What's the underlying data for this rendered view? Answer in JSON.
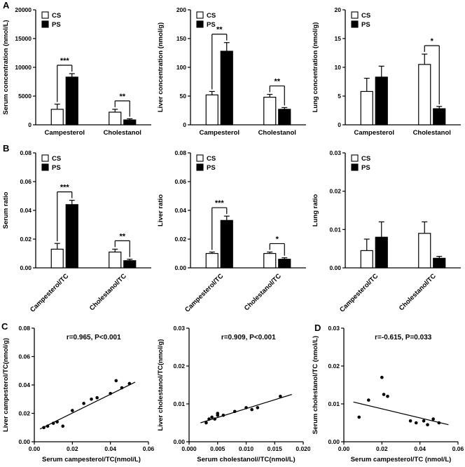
{
  "panels": {
    "A": "A",
    "B": "B",
    "C": "C",
    "D": "D"
  },
  "legend": {
    "cs": "CS",
    "ps": "PS"
  },
  "colors": {
    "cs_fill": "#ffffff",
    "ps_fill": "#000000",
    "stroke": "#000000"
  },
  "chart_data": [
    {
      "id": "serum-concentration",
      "panel": "A",
      "type": "bar",
      "ylabel": "Serum concentration (nmol/L)",
      "ylim": [
        0,
        20000
      ],
      "yticks": [
        0,
        5000,
        10000,
        15000,
        20000
      ],
      "ytick_decimals": 0,
      "categories": [
        "Campesterol",
        "Cholestanol"
      ],
      "rotate_xticks": false,
      "series": [
        {
          "name": "CS",
          "values": [
            2700,
            2200
          ],
          "errors": [
            900,
            500
          ]
        },
        {
          "name": "PS",
          "values": [
            8300,
            850
          ],
          "errors": [
            600,
            200
          ]
        }
      ],
      "significance": [
        {
          "category": 0,
          "label": "***"
        },
        {
          "category": 1,
          "label": "**"
        }
      ]
    },
    {
      "id": "liver-concentration",
      "panel": "A",
      "type": "bar",
      "ylabel": "Liver concentration (nmol/g)",
      "ylim": [
        0,
        200
      ],
      "yticks": [
        0,
        50,
        100,
        150,
        200
      ],
      "ytick_decimals": 0,
      "categories": [
        "Campesterol",
        "Cholestanol"
      ],
      "rotate_xticks": false,
      "series": [
        {
          "name": "CS",
          "values": [
            52,
            48
          ],
          "errors": [
            6,
            5
          ]
        },
        {
          "name": "PS",
          "values": [
            128,
            27
          ],
          "errors": [
            15,
            3
          ]
        }
      ],
      "significance": [
        {
          "category": 0,
          "label": "**"
        },
        {
          "category": 1,
          "label": "**"
        }
      ]
    },
    {
      "id": "lung-concentration",
      "panel": "A",
      "type": "bar",
      "ylabel": "Lung concentration (nmol/g)",
      "ylim": [
        0,
        20
      ],
      "yticks": [
        0,
        5,
        10,
        15,
        20
      ],
      "ytick_decimals": 0,
      "categories": [
        "Campesterol",
        "Cholestanol"
      ],
      "rotate_xticks": false,
      "series": [
        {
          "name": "CS",
          "values": [
            5.8,
            10.5
          ],
          "errors": [
            2.3,
            1.8
          ]
        },
        {
          "name": "PS",
          "values": [
            8.3,
            2.8
          ],
          "errors": [
            1.9,
            0.4
          ]
        }
      ],
      "significance": [
        {
          "category": 1,
          "label": "*"
        }
      ]
    },
    {
      "id": "serum-ratio",
      "panel": "B",
      "type": "bar",
      "ylabel": "Serum ratio",
      "ylim": [
        0,
        0.08
      ],
      "yticks": [
        0,
        0.02,
        0.04,
        0.06,
        0.08
      ],
      "ytick_decimals": 2,
      "categories": [
        "Campesterol/TC",
        "Cholestanol/TC"
      ],
      "rotate_xticks": true,
      "series": [
        {
          "name": "CS",
          "values": [
            0.013,
            0.011
          ],
          "errors": [
            0.004,
            0.002
          ]
        },
        {
          "name": "PS",
          "values": [
            0.044,
            0.005
          ],
          "errors": [
            0.003,
            0.001
          ]
        }
      ],
      "significance": [
        {
          "category": 0,
          "label": "***"
        },
        {
          "category": 1,
          "label": "**"
        }
      ]
    },
    {
      "id": "liver-ratio",
      "panel": "B",
      "type": "bar",
      "ylabel": "Liver ratio",
      "ylim": [
        0,
        0.08
      ],
      "yticks": [
        0,
        0.02,
        0.04,
        0.06,
        0.08
      ],
      "ytick_decimals": 2,
      "categories": [
        "Campesterol/TC",
        "Cholestanol/TC"
      ],
      "rotate_xticks": true,
      "series": [
        {
          "name": "CS",
          "values": [
            0.01,
            0.01
          ],
          "errors": [
            0.001,
            0.001
          ]
        },
        {
          "name": "PS",
          "values": [
            0.033,
            0.006
          ],
          "errors": [
            0.003,
            0.001
          ]
        }
      ],
      "significance": [
        {
          "category": 0,
          "label": "***"
        },
        {
          "category": 1,
          "label": "*"
        }
      ]
    },
    {
      "id": "lung-ratio",
      "panel": "B",
      "type": "bar",
      "ylabel": "Lung ratio",
      "ylim": [
        0,
        0.03
      ],
      "yticks": [
        0,
        0.01,
        0.02,
        0.03
      ],
      "ytick_decimals": 2,
      "categories": [
        "Campesterol/TC",
        "Cholestanol/TC"
      ],
      "rotate_xticks": true,
      "series": [
        {
          "name": "CS",
          "values": [
            0.0045,
            0.009
          ],
          "errors": [
            0.003,
            0.003
          ]
        },
        {
          "name": "PS",
          "values": [
            0.008,
            0.0025
          ],
          "errors": [
            0.004,
            0.0005
          ]
        }
      ],
      "significance": []
    },
    {
      "id": "liver-campesterol-correlation",
      "panel": "C",
      "type": "scatter",
      "xlabel": "Serum campesterol/TC(nmol/L)",
      "ylabel": "Liver campesterol/TC(nmol/g)",
      "xlim": [
        0,
        0.06
      ],
      "xticks": [
        0,
        0.02,
        0.04,
        0.06
      ],
      "xtick_decimals": 2,
      "ylim": [
        0,
        0.08
      ],
      "yticks": [
        0,
        0.02,
        0.04,
        0.06,
        0.08
      ],
      "ytick_decimals": 2,
      "annotation": "r=0.965, P<0.001",
      "points": [
        [
          0.005,
          0.01
        ],
        [
          0.007,
          0.011
        ],
        [
          0.01,
          0.013
        ],
        [
          0.012,
          0.014
        ],
        [
          0.015,
          0.011
        ],
        [
          0.02,
          0.022
        ],
        [
          0.026,
          0.027
        ],
        [
          0.03,
          0.03
        ],
        [
          0.033,
          0.031
        ],
        [
          0.04,
          0.034
        ],
        [
          0.043,
          0.043
        ],
        [
          0.046,
          0.038
        ],
        [
          0.05,
          0.041
        ]
      ],
      "fit_line": [
        [
          0.003,
          0.009
        ],
        [
          0.053,
          0.042
        ]
      ]
    },
    {
      "id": "liver-cholestanol-correlation",
      "panel": "C",
      "type": "scatter",
      "xlabel": "Serum cholestanol//TC(nmol/L)",
      "ylabel": "Liver cholestanol/TC(nmol/g)",
      "xlim": [
        0,
        0.02
      ],
      "xticks": [
        0,
        0.005,
        0.01,
        0.015,
        0.02
      ],
      "xtick_decimals": 3,
      "ylim": [
        0,
        0.03
      ],
      "yticks": [
        0,
        0.01,
        0.02,
        0.03
      ],
      "ytick_decimals": 2,
      "annotation": "r=0.909, P<0.001",
      "points": [
        [
          0.003,
          0.005
        ],
        [
          0.0035,
          0.006
        ],
        [
          0.004,
          0.0065
        ],
        [
          0.0045,
          0.006
        ],
        [
          0.005,
          0.007
        ],
        [
          0.005,
          0.0075
        ],
        [
          0.006,
          0.007
        ],
        [
          0.008,
          0.008
        ],
        [
          0.01,
          0.009
        ],
        [
          0.011,
          0.0085
        ],
        [
          0.012,
          0.009
        ],
        [
          0.016,
          0.012
        ]
      ],
      "fit_line": [
        [
          0.002,
          0.005
        ],
        [
          0.018,
          0.0125
        ]
      ]
    },
    {
      "id": "serum-cholestanol-correlation",
      "panel": "D",
      "type": "scatter",
      "xlabel": "Serum campesterol/TC (nmol/L)",
      "ylabel": "Serum cholestanol/TC (nmol/L)",
      "xlim": [
        0,
        0.06
      ],
      "xticks": [
        0,
        0.02,
        0.04,
        0.06
      ],
      "xtick_decimals": 2,
      "ylim": [
        0,
        0.03
      ],
      "yticks": [
        0,
        0.01,
        0.02,
        0.03
      ],
      "ytick_decimals": 2,
      "annotation": "r=-0.615, P=0.033",
      "points": [
        [
          0.008,
          0.0065
        ],
        [
          0.013,
          0.011
        ],
        [
          0.02,
          0.017
        ],
        [
          0.021,
          0.0125
        ],
        [
          0.023,
          0.012
        ],
        [
          0.035,
          0.0055
        ],
        [
          0.038,
          0.005
        ],
        [
          0.042,
          0.0055
        ],
        [
          0.044,
          0.0045
        ],
        [
          0.047,
          0.006
        ],
        [
          0.05,
          0.005
        ]
      ],
      "fit_line": [
        [
          0.005,
          0.0105
        ],
        [
          0.055,
          0.0045
        ]
      ]
    }
  ]
}
